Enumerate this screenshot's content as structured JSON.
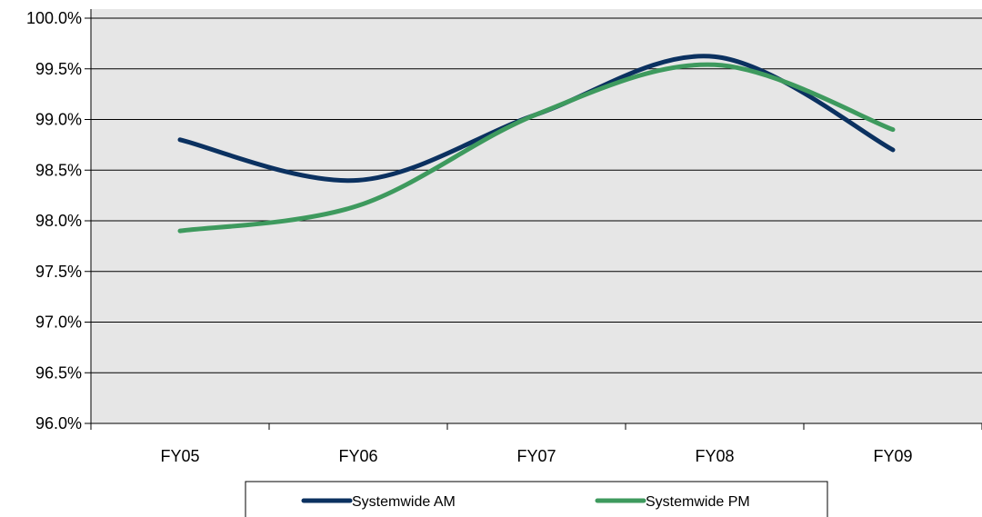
{
  "chart_data": {
    "type": "line",
    "categories": [
      "FY05",
      "FY06",
      "FY07",
      "FY08",
      "FY09"
    ],
    "series": [
      {
        "name": "Systemwide AM",
        "values": [
          98.8,
          98.4,
          99.05,
          99.62,
          98.7
        ],
        "color": "#0b3160"
      },
      {
        "name": "Systemwide PM",
        "values": [
          97.9,
          98.15,
          99.05,
          99.54,
          98.9
        ],
        "color": "#3e9a5e"
      }
    ],
    "ylim": [
      96.0,
      100.0
    ],
    "ytick_step": 0.5,
    "ytick_labels": [
      "96.0%",
      "96.5%",
      "97.0%",
      "97.5%",
      "98.0%",
      "98.5%",
      "99.0%",
      "99.5%",
      "100.0%"
    ],
    "smooth": true,
    "grid": true,
    "plot_background": "#e6e6e6",
    "gridline_color": "#000000",
    "legend_position": "bottom"
  }
}
